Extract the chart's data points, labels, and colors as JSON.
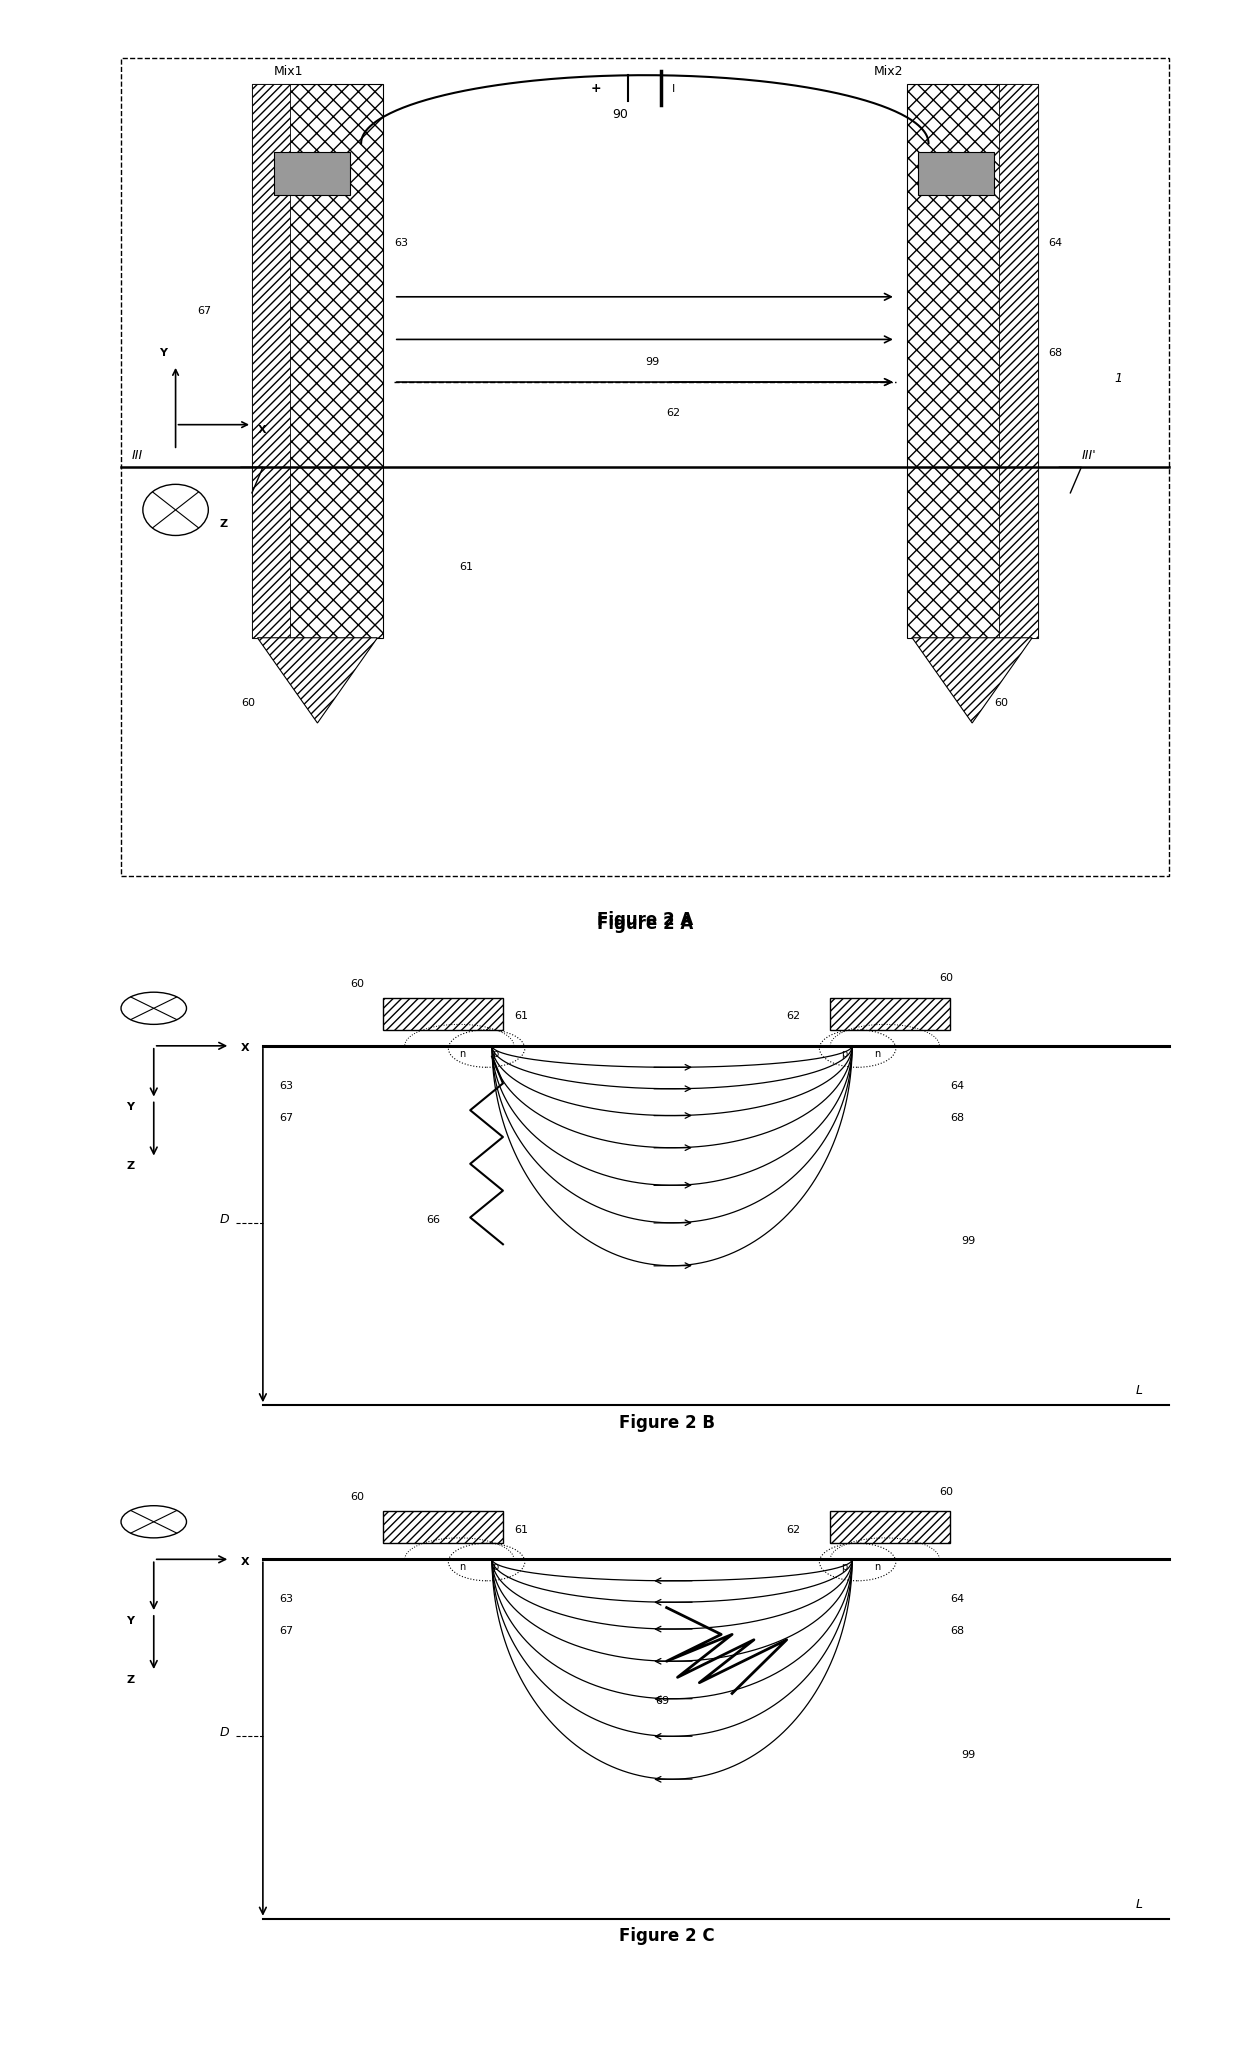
{
  "fig_title_A": "Figure 2 A",
  "fig_title_B": "Figure 2 B",
  "fig_title_C": "Figure 2 C",
  "bg_color": "#ffffff",
  "line_color": "#000000"
}
